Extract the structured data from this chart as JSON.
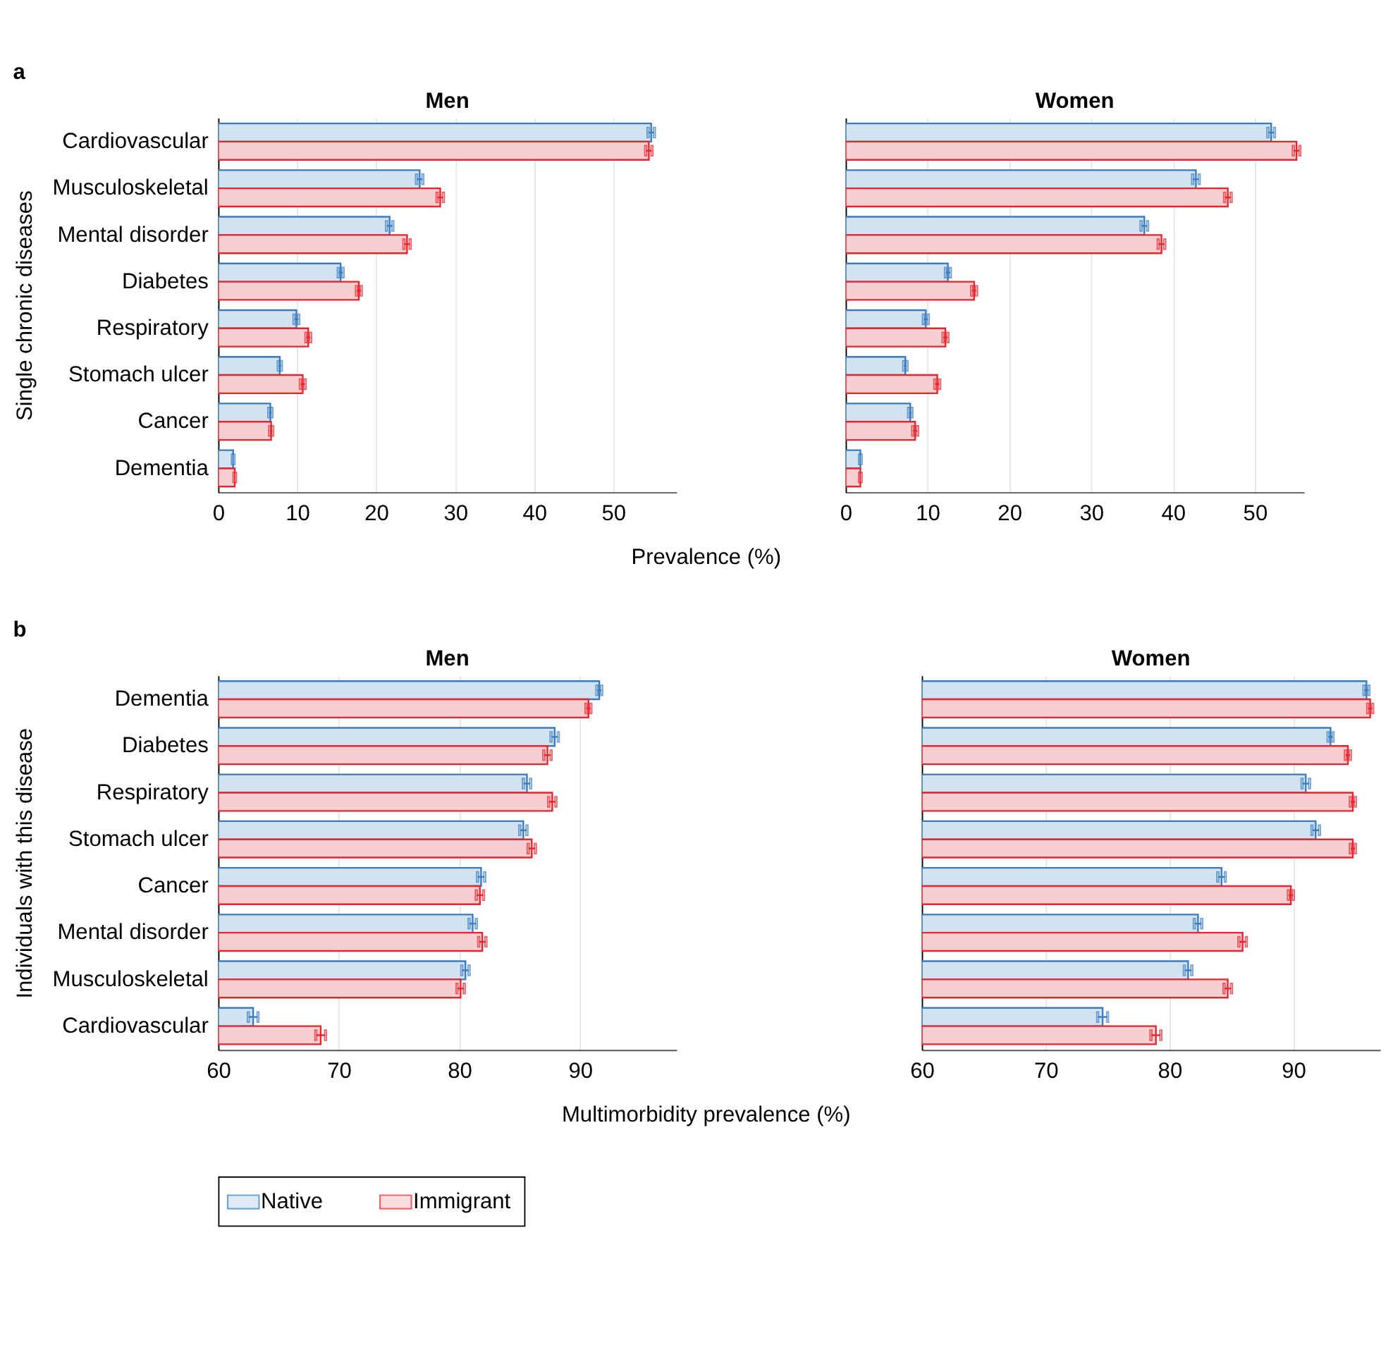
{
  "chart_data": [
    {
      "type": "bar",
      "orientation": "horizontal",
      "title": "Men",
      "ylabel": "Single chronic diseases",
      "xlabel": "Prevalence (%)",
      "annotations": [
        "a"
      ],
      "categories": [
        "Cardiovascular",
        "Musculoskeletal",
        "Mental disorder",
        "Diabetes",
        "Respiratory",
        "Stomach ulcer",
        "Cancer",
        "Dementia"
      ],
      "xlim": [
        0,
        58
      ],
      "xticks": [
        0,
        10,
        20,
        30,
        40,
        50
      ],
      "grid": "x",
      "legend": "bottom",
      "series": [
        {
          "name": "Native",
          "color": "#3a7dbf",
          "values": [
            54.8,
            25.5,
            21.7,
            15.5,
            9.9,
            7.8,
            6.6,
            1.9
          ],
          "errors": [
            0.4,
            0.4,
            0.4,
            0.3,
            0.3,
            0.2,
            0.2,
            0.1
          ]
        },
        {
          "name": "Immigrant",
          "color": "#e3262f",
          "values": [
            54.5,
            28.1,
            23.9,
            17.8,
            11.4,
            10.7,
            6.7,
            2.1
          ],
          "errors": [
            0.4,
            0.4,
            0.4,
            0.3,
            0.3,
            0.3,
            0.2,
            0.1
          ]
        }
      ]
    },
    {
      "type": "bar",
      "orientation": "horizontal",
      "title": "Women",
      "categories": [
        "Cardiovascular",
        "Musculoskeletal",
        "Mental disorder",
        "Diabetes",
        "Respiratory",
        "Stomach ulcer",
        "Cancer",
        "Dementia"
      ],
      "xlim": [
        0,
        56
      ],
      "xticks": [
        0,
        10,
        20,
        30,
        40,
        50
      ],
      "grid": "x",
      "tick_labels": "x",
      "series": [
        {
          "name": "Native",
          "color": "#3a7dbf",
          "values": [
            52.0,
            42.8,
            36.5,
            12.5,
            9.8,
            7.3,
            7.9,
            1.8
          ],
          "errors": [
            0.4,
            0.4,
            0.4,
            0.3,
            0.3,
            0.2,
            0.2,
            0.1
          ]
        },
        {
          "name": "Immigrant",
          "color": "#e3262f",
          "values": [
            55.1,
            46.7,
            38.6,
            15.7,
            12.2,
            11.2,
            8.5,
            1.8
          ],
          "errors": [
            0.4,
            0.4,
            0.4,
            0.3,
            0.3,
            0.3,
            0.3,
            0.1
          ]
        }
      ]
    },
    {
      "type": "bar",
      "orientation": "horizontal",
      "title": "Men",
      "ylabel": "Individuals with this disease",
      "xlabel": "Multimorbidity prevalence (%)",
      "annotations": [
        "b"
      ],
      "categories": [
        "Dementia",
        "Diabetes",
        "Respiratory",
        "Stomach ulcer",
        "Cancer",
        "Mental disorder",
        "Musculoskeletal",
        "Cardiovascular"
      ],
      "xlim": [
        60,
        98
      ],
      "xticks": [
        60,
        70,
        80,
        90
      ],
      "grid": "x",
      "series": [
        {
          "name": "Native",
          "color": "#3a7dbf",
          "values": [
            91.6,
            87.9,
            85.6,
            85.3,
            81.8,
            81.1,
            80.5,
            62.9
          ],
          "errors": [
            0.2,
            0.3,
            0.3,
            0.3,
            0.3,
            0.3,
            0.3,
            0.4
          ]
        },
        {
          "name": "Immigrant",
          "color": "#e3262f",
          "values": [
            90.7,
            87.3,
            87.7,
            86.0,
            81.7,
            81.9,
            80.1,
            68.5
          ],
          "errors": [
            0.2,
            0.3,
            0.3,
            0.3,
            0.3,
            0.3,
            0.3,
            0.4
          ]
        }
      ]
    },
    {
      "type": "bar",
      "orientation": "horizontal",
      "title": "Women",
      "categories": [
        "Dementia",
        "Diabetes",
        "Respiratory",
        "Stomach ulcer",
        "Cancer",
        "Mental disorder",
        "Musculoskeletal",
        "Cardiovascular"
      ],
      "xlim": [
        60,
        97
      ],
      "xticks": [
        60,
        70,
        80,
        90
      ],
      "grid": "x",
      "tick_labels": "x",
      "series": [
        {
          "name": "Native",
          "color": "#3a7dbf",
          "values": [
            95.9,
            93.0,
            91.0,
            91.8,
            84.2,
            82.3,
            81.5,
            74.6
          ],
          "errors": [
            0.2,
            0.2,
            0.3,
            0.3,
            0.3,
            0.3,
            0.3,
            0.4
          ]
        },
        {
          "name": "Immigrant",
          "color": "#e3262f",
          "values": [
            96.2,
            94.4,
            94.8,
            94.8,
            89.8,
            85.9,
            84.7,
            78.9
          ],
          "errors": [
            0.2,
            0.2,
            0.2,
            0.2,
            0.2,
            0.3,
            0.3,
            0.4
          ]
        }
      ]
    }
  ]
}
